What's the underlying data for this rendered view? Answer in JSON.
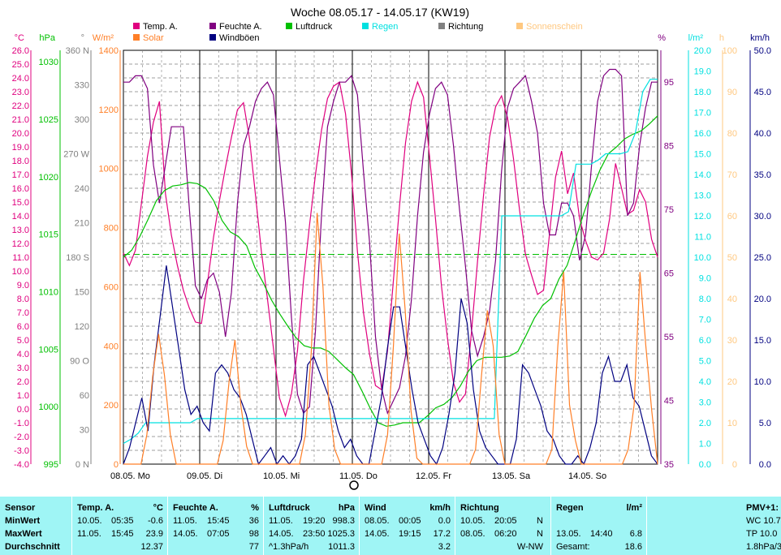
{
  "title": "Woche 08.05.17 - 14.05.17 (KW19)",
  "legend": [
    {
      "label": "Temp. A.",
      "color": "#e0007f"
    },
    {
      "label": "Solar",
      "color": "#ff7f27"
    },
    {
      "label": "Feuchte A.",
      "color": "#800080"
    },
    {
      "label": "Windböen",
      "color": "#000080"
    },
    {
      "label": "Luftdruck",
      "color": "#00c000"
    },
    {
      "label": "Regen",
      "color": "#00e0e0"
    },
    {
      "label": "Richtung",
      "color": "#808080"
    },
    {
      "label": "Sonnenschein",
      "color": "#ffc880"
    }
  ],
  "axes_units": {
    "temp": "°C",
    "press": "hPa",
    "dir": "°",
    "solar": "W/m²",
    "hum": "%",
    "rain": "l/m²",
    "sun": "h",
    "wind": "km/h"
  },
  "chart_data": {
    "type": "line",
    "x_labels": [
      "08.05. Mo",
      "09.05. Di",
      "10.05. Mi",
      "11.05. Do",
      "12.05. Fr",
      "13.05. Sa",
      "14.05. So"
    ],
    "ticks": {
      "temp": [
        "26.0",
        "25.0",
        "24.0",
        "23.0",
        "22.0",
        "21.0",
        "20.0",
        "19.0",
        "18.0",
        "17.0",
        "16.0",
        "15.0",
        "14.0",
        "13.0",
        "12.0",
        "11.0",
        "10.0",
        "9.0",
        "8.0",
        "7.0",
        "6.0",
        "5.0",
        "4.0",
        "3.0",
        "2.0",
        "1.0",
        "0.0",
        "-1.0",
        "-2.0",
        "-3.0",
        "-4.0"
      ],
      "press": [
        "1030",
        "1025",
        "1020",
        "1015",
        "1010",
        "1005",
        "1000",
        "995"
      ],
      "dir": [
        "360 N",
        "330",
        "300",
        "270 W",
        "240",
        "210",
        "180 S",
        "150",
        "120",
        "90 O",
        "60",
        "30",
        "0 N"
      ],
      "solar": [
        "1400",
        "1200",
        "1000",
        "800",
        "600",
        "400",
        "200",
        "0"
      ],
      "hum": [
        "95",
        "85",
        "75",
        "65",
        "55",
        "45",
        "35"
      ],
      "rain": [
        "20.0",
        "19.0",
        "18.0",
        "17.0",
        "16.0",
        "15.0",
        "14.0",
        "13.0",
        "12.0",
        "11.0",
        "10.0",
        "9.0",
        "8.0",
        "7.0",
        "6.0",
        "5.0",
        "4.0",
        "3.0",
        "2.0",
        "1.0",
        "0.0"
      ],
      "sun": [
        "100",
        "90",
        "80",
        "70",
        "60",
        "50",
        "40",
        "30",
        "20",
        "10",
        "0"
      ],
      "wind": [
        "50.0",
        "45.0",
        "40.0",
        "35.0",
        "30.0",
        "25.0",
        "20.0",
        "15.0",
        "10.0",
        "5.0",
        "0.0"
      ]
    },
    "ranges": {
      "temp": [
        -4,
        26
      ],
      "press": [
        995,
        1031
      ],
      "dir": [
        0,
        360
      ],
      "solar": [
        0,
        1400
      ],
      "hum": [
        35,
        100
      ],
      "rain": [
        0,
        20
      ],
      "sun": [
        0,
        100
      ],
      "wind": [
        0,
        50
      ]
    },
    "series": [
      {
        "name": "Temp. A.",
        "axis": "temp",
        "color": "#e0007f",
        "values": [
          11.3,
          10.4,
          11.5,
          14.9,
          18.3,
          20.8,
          22.3,
          15.6,
          12.6,
          10.4,
          8.6,
          7.3,
          6.3,
          6.2,
          9.1,
          12.4,
          15.1,
          17.5,
          19.7,
          21.7,
          22.2,
          19.6,
          15.5,
          11.4,
          8.0,
          4.4,
          0.8,
          -0.5,
          1.1,
          4.2,
          9.3,
          13.3,
          17.0,
          20.2,
          22.5,
          23.4,
          23.7,
          21.4,
          17.1,
          11.4,
          7.0,
          4.0,
          1.7,
          1.4,
          4.2,
          9.4,
          14.7,
          19.3,
          22.3,
          23.7,
          22.6,
          18.3,
          13.8,
          8.9,
          5.1,
          1.9,
          0.5,
          1.1,
          5.6,
          10.7,
          15.5,
          19.7,
          21.9,
          22.7,
          21.1,
          18.1,
          14.4,
          11.2,
          9.7,
          8.3,
          8.6,
          12.7,
          16.8,
          18.7,
          15.6,
          17.1,
          13.8,
          12.2,
          11.0,
          10.8,
          11.3,
          13.8,
          17.8,
          16.0,
          14.1,
          14.4,
          15.9,
          15.0,
          12.3,
          11.0
        ]
      },
      {
        "name": "Feuchte A.",
        "axis": "hum",
        "color": "#800080",
        "values": [
          95,
          95,
          96,
          96,
          94,
          82,
          76,
          82,
          88,
          88,
          88,
          75,
          63,
          61,
          64,
          65,
          62,
          55,
          62,
          76,
          85,
          88,
          92,
          94,
          95,
          93,
          83,
          73,
          58,
          46,
          43,
          44,
          56,
          74,
          88,
          92,
          95,
          95,
          96,
          93,
          81,
          70,
          55,
          47,
          43,
          45,
          47,
          52,
          61,
          74,
          84,
          90,
          94,
          95,
          93,
          85,
          75,
          66,
          56,
          52,
          55,
          59,
          67,
          81,
          91,
          94,
          95,
          96,
          92,
          87,
          76,
          71,
          71,
          76,
          76,
          74,
          67,
          71,
          82,
          92,
          96,
          97,
          97,
          96,
          74,
          76,
          85,
          91,
          95,
          95
        ]
      },
      {
        "name": "Luftdruck",
        "axis": "press",
        "color": "#00c000",
        "values": [
          1013.0,
          1013.6,
          1014.8,
          1016.3,
          1017.9,
          1018.8,
          1019.2,
          1019.3,
          1019.5,
          1019.4,
          1019.0,
          1017.9,
          1016.2,
          1015.2,
          1014.8,
          1014.0,
          1012.1,
          1010.8,
          1009.3,
          1008.1,
          1007.0,
          1006.0,
          1005.3,
          1005.1,
          1005.1,
          1004.8,
          1004.1,
          1003.4,
          1002.8,
          1001.4,
          999.9,
          998.6,
          998.3,
          998.4,
          998.6,
          998.6,
          998.6,
          999.2,
          999.9,
          1000.2,
          1000.8,
          1001.8,
          1003.1,
          1004.0,
          1004.3,
          1004.3,
          1004.3,
          1004.4,
          1004.8,
          1006.2,
          1007.7,
          1008.8,
          1009.4,
          1011.1,
          1012.3,
          1014.5,
          1016.8,
          1018.8,
          1020.6,
          1022.0,
          1022.6,
          1023.3,
          1023.7,
          1024.0,
          1024.6,
          1025.3
        ]
      },
      {
        "name": "Regen",
        "axis": "rain",
        "color": "#00e0e0",
        "values": [
          1.0,
          1.2,
          1.5,
          2.0,
          2.0,
          2.0,
          2.0,
          2.0,
          2.0,
          2.0,
          2.2,
          2.2,
          2.2,
          2.2,
          2.2,
          2.2,
          2.2,
          2.2,
          2.2,
          2.2,
          2.2,
          2.2,
          2.2,
          2.2,
          2.2,
          2.2,
          2.2,
          2.2,
          2.2,
          2.2,
          2.2,
          2.2,
          2.2,
          2.2,
          2.2,
          2.2,
          2.2,
          2.2,
          2.2,
          2.2,
          2.2,
          2.2,
          2.2,
          2.2,
          2.2,
          2.2,
          2.2,
          2.2,
          2.2,
          2.2,
          2.2,
          12.0,
          12.0,
          12.0,
          12.0,
          12.0,
          12.0,
          12.0,
          12.0,
          12.0,
          12.2,
          14.5,
          14.5,
          14.5,
          14.7,
          15.0,
          15.0,
          15.0,
          15.1,
          16.0,
          18.0,
          18.6,
          18.6
        ]
      },
      {
        "name": "Windböen",
        "axis": "wind",
        "color": "#000080",
        "values": [
          0,
          2,
          5,
          8,
          4,
          12,
          18,
          24,
          19,
          14,
          9,
          6,
          7,
          5,
          4,
          11,
          12,
          11,
          9,
          8,
          6,
          3,
          0,
          1,
          2,
          0,
          1,
          0,
          1,
          3,
          12,
          13,
          11,
          9,
          7,
          4,
          2,
          3,
          1,
          0,
          0,
          4,
          8,
          14,
          19,
          19,
          14,
          9,
          5,
          3,
          1,
          0,
          2,
          6,
          11,
          20,
          17,
          9,
          4,
          2,
          1,
          0,
          0,
          0,
          3,
          12,
          11,
          9,
          7,
          4,
          3,
          1,
          0,
          0,
          1,
          0,
          2,
          5,
          11,
          13,
          10,
          10,
          12,
          8,
          7,
          4,
          1,
          0
        ]
      },
      {
        "name": "Solar",
        "axis": "solar",
        "color": "#ff7f27",
        "values": [
          0,
          0,
          0,
          0,
          100,
          300,
          440,
          300,
          100,
          0,
          0,
          0,
          0,
          0,
          0,
          0,
          0,
          80,
          280,
          420,
          200,
          60,
          0,
          0,
          0,
          0,
          0,
          0,
          0,
          0,
          0,
          100,
          380,
          850,
          600,
          200,
          50,
          0,
          0,
          0,
          0,
          0,
          0,
          0,
          0,
          100,
          400,
          780,
          520,
          180,
          20,
          0,
          0,
          0,
          0,
          0,
          0,
          0,
          0,
          0,
          50,
          300,
          520,
          400,
          100,
          0,
          0,
          0,
          0,
          0,
          0,
          0,
          0,
          50,
          400,
          650,
          200,
          80,
          0,
          0,
          0,
          0,
          0,
          0,
          0,
          0,
          50,
          200,
          650,
          400,
          180,
          0
        ]
      }
    ],
    "reference_line": {
      "axis": "press",
      "value": 1013.25,
      "color": "#00c000"
    }
  },
  "table": {
    "sensor": {
      "header": "Sensor",
      "rows": [
        "MinWert",
        "MaxWert",
        "Durchschnitt"
      ]
    },
    "temp": {
      "header": "Temp. A.",
      "unit": "°C",
      "rows": [
        [
          "10.05.",
          "05:35",
          "-0.6"
        ],
        [
          "11.05.",
          "15:45",
          "23.9"
        ],
        [
          "",
          "",
          "12.37"
        ]
      ]
    },
    "hum": {
      "header": "Feuchte A.",
      "unit": "%",
      "rows": [
        [
          "11.05.",
          "15:45",
          "36"
        ],
        [
          "14.05.",
          "07:05",
          "98"
        ],
        [
          "",
          "",
          "77"
        ]
      ]
    },
    "press": {
      "header": "Luftdruck",
      "unit": "hPa",
      "rows": [
        [
          "11.05.",
          "19:20",
          "998.3"
        ],
        [
          "14.05.",
          "23:50",
          "1025.3"
        ],
        [
          "^1.3hPa/h",
          "",
          "1011.3"
        ]
      ]
    },
    "wind": {
      "header": "Wind",
      "unit": "km/h",
      "rows": [
        [
          "08.05.",
          "00:05",
          "0.0"
        ],
        [
          "14.05.",
          "19:15",
          "17.2"
        ],
        [
          "",
          "",
          "3.2"
        ]
      ]
    },
    "dir": {
      "header": "Richtung",
      "rows": [
        [
          "10.05.",
          "20:05",
          "N"
        ],
        [
          "08.05.",
          "06:20",
          "N"
        ],
        [
          "",
          "",
          "W-NW"
        ]
      ]
    },
    "rain": {
      "header": "Regen",
      "unit": "l/m²",
      "rows": [
        [
          "",
          "",
          ""
        ],
        [
          "13.05.",
          "14:40",
          "6.8"
        ],
        [
          "Gesamt:",
          "",
          "18.6"
        ]
      ]
    },
    "pmv": {
      "header": "PMV+1:",
      "rows": [
        "WC 10.7",
        "TP 10.0",
        "1.8hPa/3"
      ]
    }
  }
}
